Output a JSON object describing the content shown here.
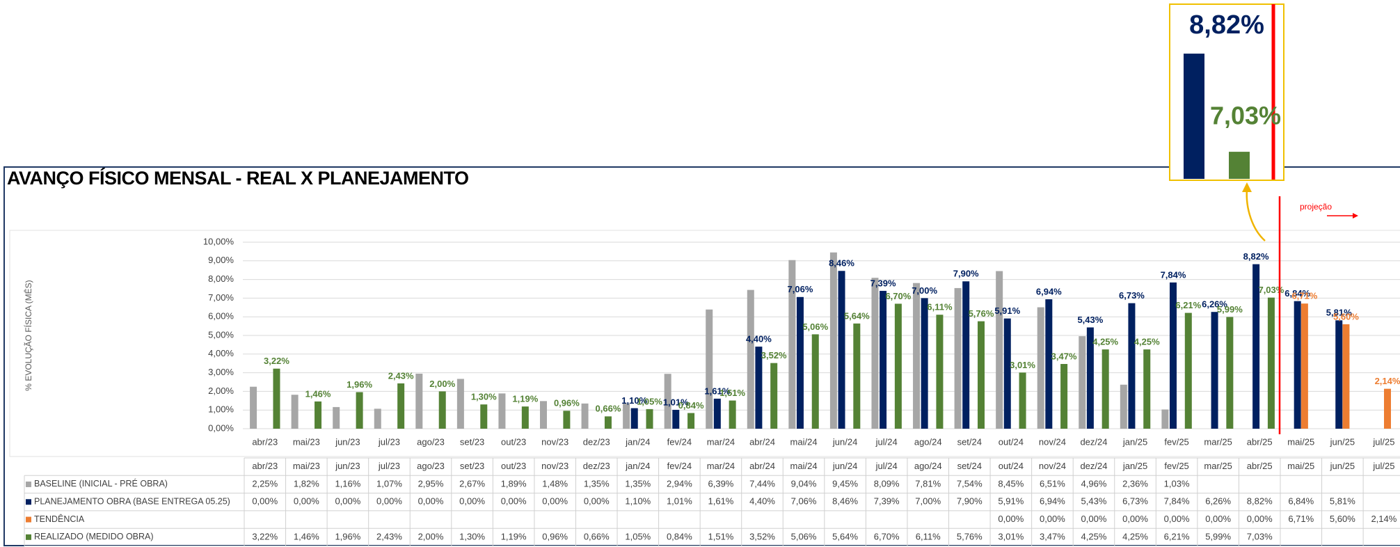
{
  "chart_data": {
    "type": "bar",
    "title": "AVANÇO FÍSICO MENSAL - REAL  X PLANEJAMENTO",
    "ylabel": "% EVOLUÇÃO FÍSICA (MÊS)",
    "annotation": "projeção",
    "projection_from": "mai/25",
    "categories": [
      "abr/23",
      "mai/23",
      "jun/23",
      "jul/23",
      "ago/23",
      "set/23",
      "out/23",
      "nov/23",
      "dez/23",
      "jan/24",
      "fev/24",
      "mar/24",
      "abr/24",
      "mai/24",
      "jun/24",
      "jul/24",
      "ago/24",
      "set/24",
      "out/24",
      "nov/24",
      "dez/24",
      "jan/25",
      "fev/25",
      "mar/25",
      "abr/25",
      "mai/25",
      "jun/25",
      "jul/25"
    ],
    "series": [
      {
        "name": "BASELINE (INICIAL - PRÉ OBRA)",
        "color": "#a6a6a6",
        "data_labels": false,
        "values": [
          2.25,
          1.82,
          1.16,
          1.07,
          2.95,
          2.67,
          1.89,
          1.48,
          1.35,
          1.35,
          2.94,
          6.39,
          7.44,
          9.04,
          9.45,
          8.09,
          7.81,
          7.54,
          8.45,
          6.51,
          4.96,
          2.36,
          1.03,
          null,
          null,
          null,
          null,
          null
        ],
        "value_labels": [
          "2,25%",
          "1,82%",
          "1,16%",
          "1,07%",
          "2,95%",
          "2,67%",
          "1,89%",
          "1,48%",
          "1,35%",
          "1,35%",
          "2,94%",
          "6,39%",
          "7,44%",
          "9,04%",
          "9,45%",
          "8,09%",
          "7,81%",
          "7,54%",
          "8,45%",
          "6,51%",
          "4,96%",
          "2,36%",
          "1,03%",
          null,
          null,
          null,
          null,
          null
        ]
      },
      {
        "name": "PLANEJAMENTO OBRA (BASE ENTREGA 05.25)",
        "color": "#002060",
        "data_labels": true,
        "values": [
          0,
          0,
          0,
          0,
          0,
          0,
          0,
          0,
          0,
          1.1,
          1.01,
          1.61,
          4.4,
          7.06,
          8.46,
          7.39,
          7.0,
          7.9,
          5.91,
          6.94,
          5.43,
          6.73,
          7.84,
          6.26,
          8.82,
          6.84,
          5.81,
          null
        ],
        "value_labels": [
          "0,00%",
          "0,00%",
          "0,00%",
          "0,00%",
          "0,00%",
          "0,00%",
          "0,00%",
          "0,00%",
          "0,00%",
          "1,10%",
          "1,01%",
          "1,61%",
          "4,40%",
          "7,06%",
          "8,46%",
          "7,39%",
          "7,00%",
          "7,90%",
          "5,91%",
          "6,94%",
          "5,43%",
          "6,73%",
          "7,84%",
          "6,26%",
          "8,82%",
          "6,84%",
          "5,81%",
          null
        ]
      },
      {
        "name": "TENDÊNCIA",
        "color": "#ed7d31",
        "data_labels": true,
        "values": [
          null,
          null,
          null,
          null,
          null,
          null,
          null,
          null,
          null,
          null,
          null,
          null,
          null,
          null,
          null,
          null,
          null,
          null,
          0,
          0,
          0,
          0,
          0,
          0,
          0,
          6.71,
          5.6,
          2.14
        ],
        "value_labels": [
          null,
          null,
          null,
          null,
          null,
          null,
          null,
          null,
          null,
          null,
          null,
          null,
          null,
          null,
          null,
          null,
          null,
          null,
          "0,00%",
          "0,00%",
          "0,00%",
          "0,00%",
          "0,00%",
          "0,00%",
          "0,00%",
          "6,71%",
          "5,60%",
          "2,14%"
        ]
      },
      {
        "name": "REALIZADO (MEDIDO OBRA)",
        "color": "#548235",
        "data_labels": true,
        "values": [
          3.22,
          1.46,
          1.96,
          2.43,
          2.0,
          1.3,
          1.19,
          0.96,
          0.66,
          1.05,
          0.84,
          1.51,
          3.52,
          5.06,
          5.64,
          6.7,
          6.11,
          5.76,
          3.01,
          3.47,
          4.25,
          4.25,
          6.21,
          5.99,
          7.03,
          null,
          null,
          null
        ],
        "value_labels": [
          "3,22%",
          "1,46%",
          "1,96%",
          "2,43%",
          "2,00%",
          "1,30%",
          "1,19%",
          "0,96%",
          "0,66%",
          "1,05%",
          "0,84%",
          "1,51%",
          "3,52%",
          "5,06%",
          "5,64%",
          "6,70%",
          "6,11%",
          "5,76%",
          "3,01%",
          "3,47%",
          "4,25%",
          "4,25%",
          "6,21%",
          "5,99%",
          "7,03%",
          null,
          null,
          null
        ]
      }
    ],
    "ylim": [
      0,
      10
    ],
    "yticks": [
      {
        "value": 0,
        "label": "0,00%"
      },
      {
        "value": 1,
        "label": "1,00%"
      },
      {
        "value": 2,
        "label": "2,00%"
      },
      {
        "value": 3,
        "label": "3,00%"
      },
      {
        "value": 4,
        "label": "4,00%"
      },
      {
        "value": 5,
        "label": "5,00%"
      },
      {
        "value": 6,
        "label": "6,00%"
      },
      {
        "value": 7,
        "label": "7,00%"
      },
      {
        "value": 8,
        "label": "8,00%"
      },
      {
        "value": 9,
        "label": "9,00%"
      },
      {
        "value": 10,
        "label": "10,00%"
      }
    ],
    "grid": true
  }
}
